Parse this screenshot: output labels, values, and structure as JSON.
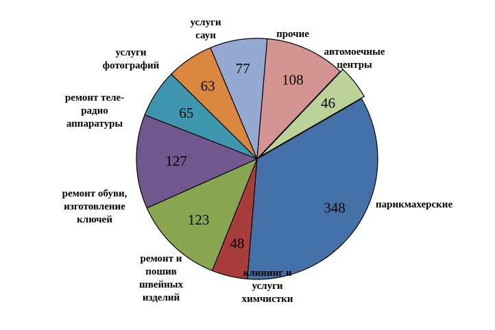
{
  "chart_data": {
    "type": "pie",
    "title": "",
    "slices": [
      {
        "label": "парикмахерские",
        "label_lines": [
          "парикмахерские"
        ],
        "value": 348,
        "color": "#4472A8"
      },
      {
        "label": "клининг и услуги химчистки",
        "label_lines": [
          "клининг и",
          "услуги",
          "химчистки"
        ],
        "value": 48,
        "color": "#A83D3B"
      },
      {
        "label": "ремонт и пошив швейных изделий",
        "label_lines": [
          "ремонт и",
          "пошив",
          "швейных",
          "изделий"
        ],
        "value": 123,
        "color": "#88A64F"
      },
      {
        "label": "ремонт обуви, изготовление ключей",
        "label_lines": [
          "ремонт обуви,",
          "изготовление",
          "ключей"
        ],
        "value": 127,
        "color": "#70588F"
      },
      {
        "label": "ремонт теле-радио аппаратуры",
        "label_lines": [
          "ремонт  теле-",
          "радио",
          "аппаратуры"
        ],
        "value": 65,
        "color": "#3E97AE"
      },
      {
        "label": "услуги фотографий",
        "label_lines": [
          "услуги",
          "фотографий"
        ],
        "value": 63,
        "color": "#DC873F"
      },
      {
        "label": "услуги саун",
        "label_lines": [
          "услуги",
          "саун"
        ],
        "value": 77,
        "color": "#95A9D2"
      },
      {
        "label": "прочие",
        "label_lines": [
          "прочие"
        ],
        "value": 108,
        "color": "#D49492"
      },
      {
        "label": "автомоечные центры",
        "label_lines": [
          "автомоечные",
          "центры"
        ],
        "value": 46,
        "color": "#BCD29B"
      }
    ],
    "legend": "none"
  }
}
